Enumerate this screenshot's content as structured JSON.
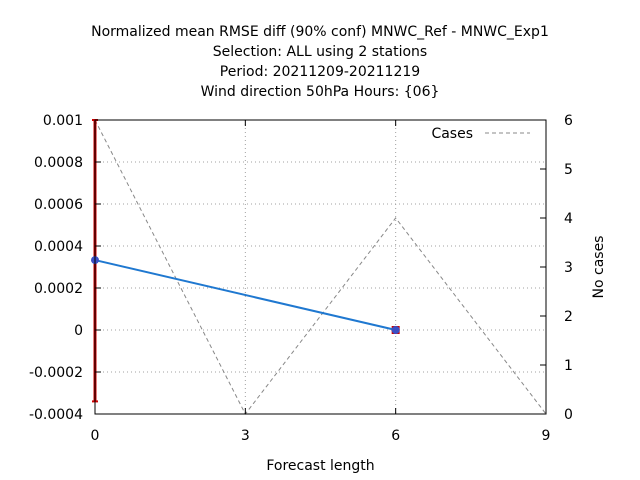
{
  "chart_data": {
    "type": "line",
    "title_lines": [
      "Normalized mean RMSE diff (90% conf) MNWC_Ref - MNWC_Exp1",
      "Selection: ALL using      2 stations",
      "Period: 20211209-20211219",
      "Wind direction 50hPa   Hours: {06}"
    ],
    "xlabel": "Forecast length",
    "y2label": "No cases",
    "xlim": [
      0,
      9
    ],
    "ylim": [
      -0.0004,
      0.001
    ],
    "y2lim": [
      0,
      6
    ],
    "xticks": [
      "0",
      "3",
      "6",
      "9"
    ],
    "xtick_values": [
      0,
      3,
      6,
      9
    ],
    "yticks": [
      "-0.0004",
      "-0.0002",
      "0",
      "0.0002",
      "0.0004",
      "0.0006",
      "0.0008",
      "0.001"
    ],
    "ytick_values": [
      -0.0004,
      -0.0002,
      0,
      0.0002,
      0.0004,
      0.0006,
      0.0008,
      0.001
    ],
    "y2ticks": [
      "0",
      "1",
      "2",
      "3",
      "4",
      "5",
      "6"
    ],
    "y2tick_values": [
      0,
      1,
      2,
      3,
      4,
      5,
      6
    ],
    "grid": true,
    "legend_position": "top-right",
    "series": [
      {
        "kind": "mean_diff",
        "color": "#1f78d0",
        "marker_color": "#3b4fc4",
        "x": [
          0,
          6
        ],
        "y": [
          0.000333,
          0.0
        ]
      },
      {
        "kind": "cases",
        "name": "Cases",
        "axis": "y2",
        "color": "#888888",
        "dashed": true,
        "x": [
          0,
          3,
          6,
          9
        ],
        "y": [
          6,
          0,
          4,
          0
        ]
      }
    ],
    "error_bars": [
      {
        "x": 0,
        "low": -0.00034,
        "high": 0.001,
        "color": "#cc0000"
      },
      {
        "x": 6,
        "low": 0.0,
        "high": 0.0,
        "color": "#cc0000"
      }
    ]
  }
}
